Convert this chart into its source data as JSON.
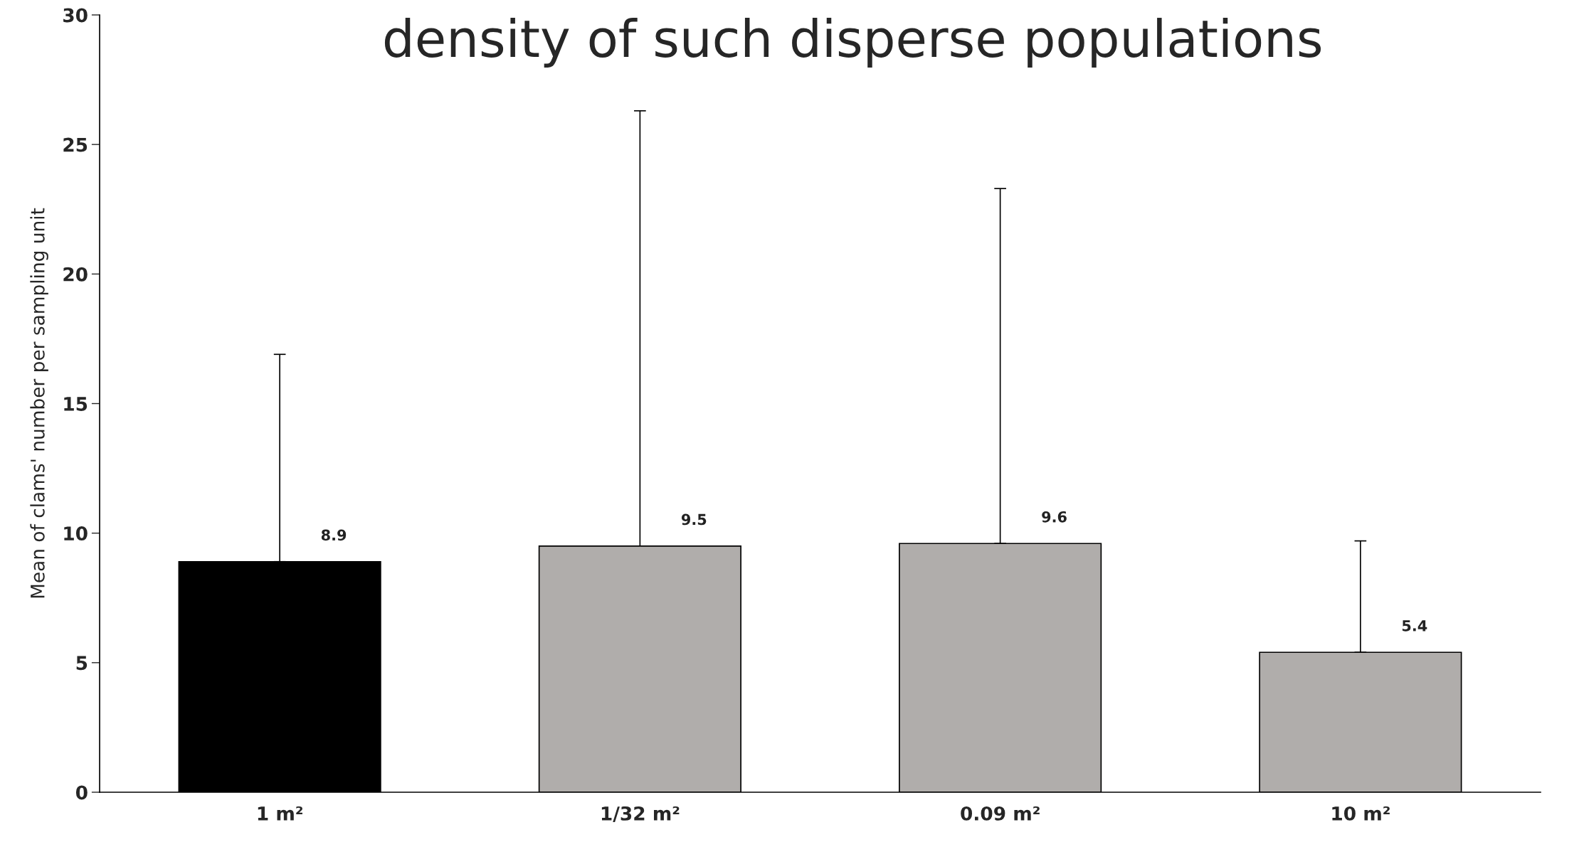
{
  "chart_data": {
    "type": "bar",
    "title": "density of such disperse populations",
    "ylabel": "Mean of clams' number per sampling unit",
    "categories": [
      "1 m²",
      "1/32 m²",
      "0.09 m²",
      "10 m²"
    ],
    "values": [
      8.9,
      9.5,
      9.6,
      5.4
    ],
    "colors": [
      "#000000",
      "#b0adab",
      "#b0adab",
      "#b0adab"
    ],
    "errors": [
      [
        8.9,
        16.9
      ],
      [
        9.5,
        26.3
      ],
      [
        9.6,
        23.3
      ],
      [
        5.4,
        9.7
      ]
    ],
    "data_labels": true,
    "ylim": [
      0,
      30
    ],
    "yticks": [
      0,
      5,
      10,
      15,
      20,
      25,
      30
    ],
    "grid": false,
    "legend": false
  }
}
